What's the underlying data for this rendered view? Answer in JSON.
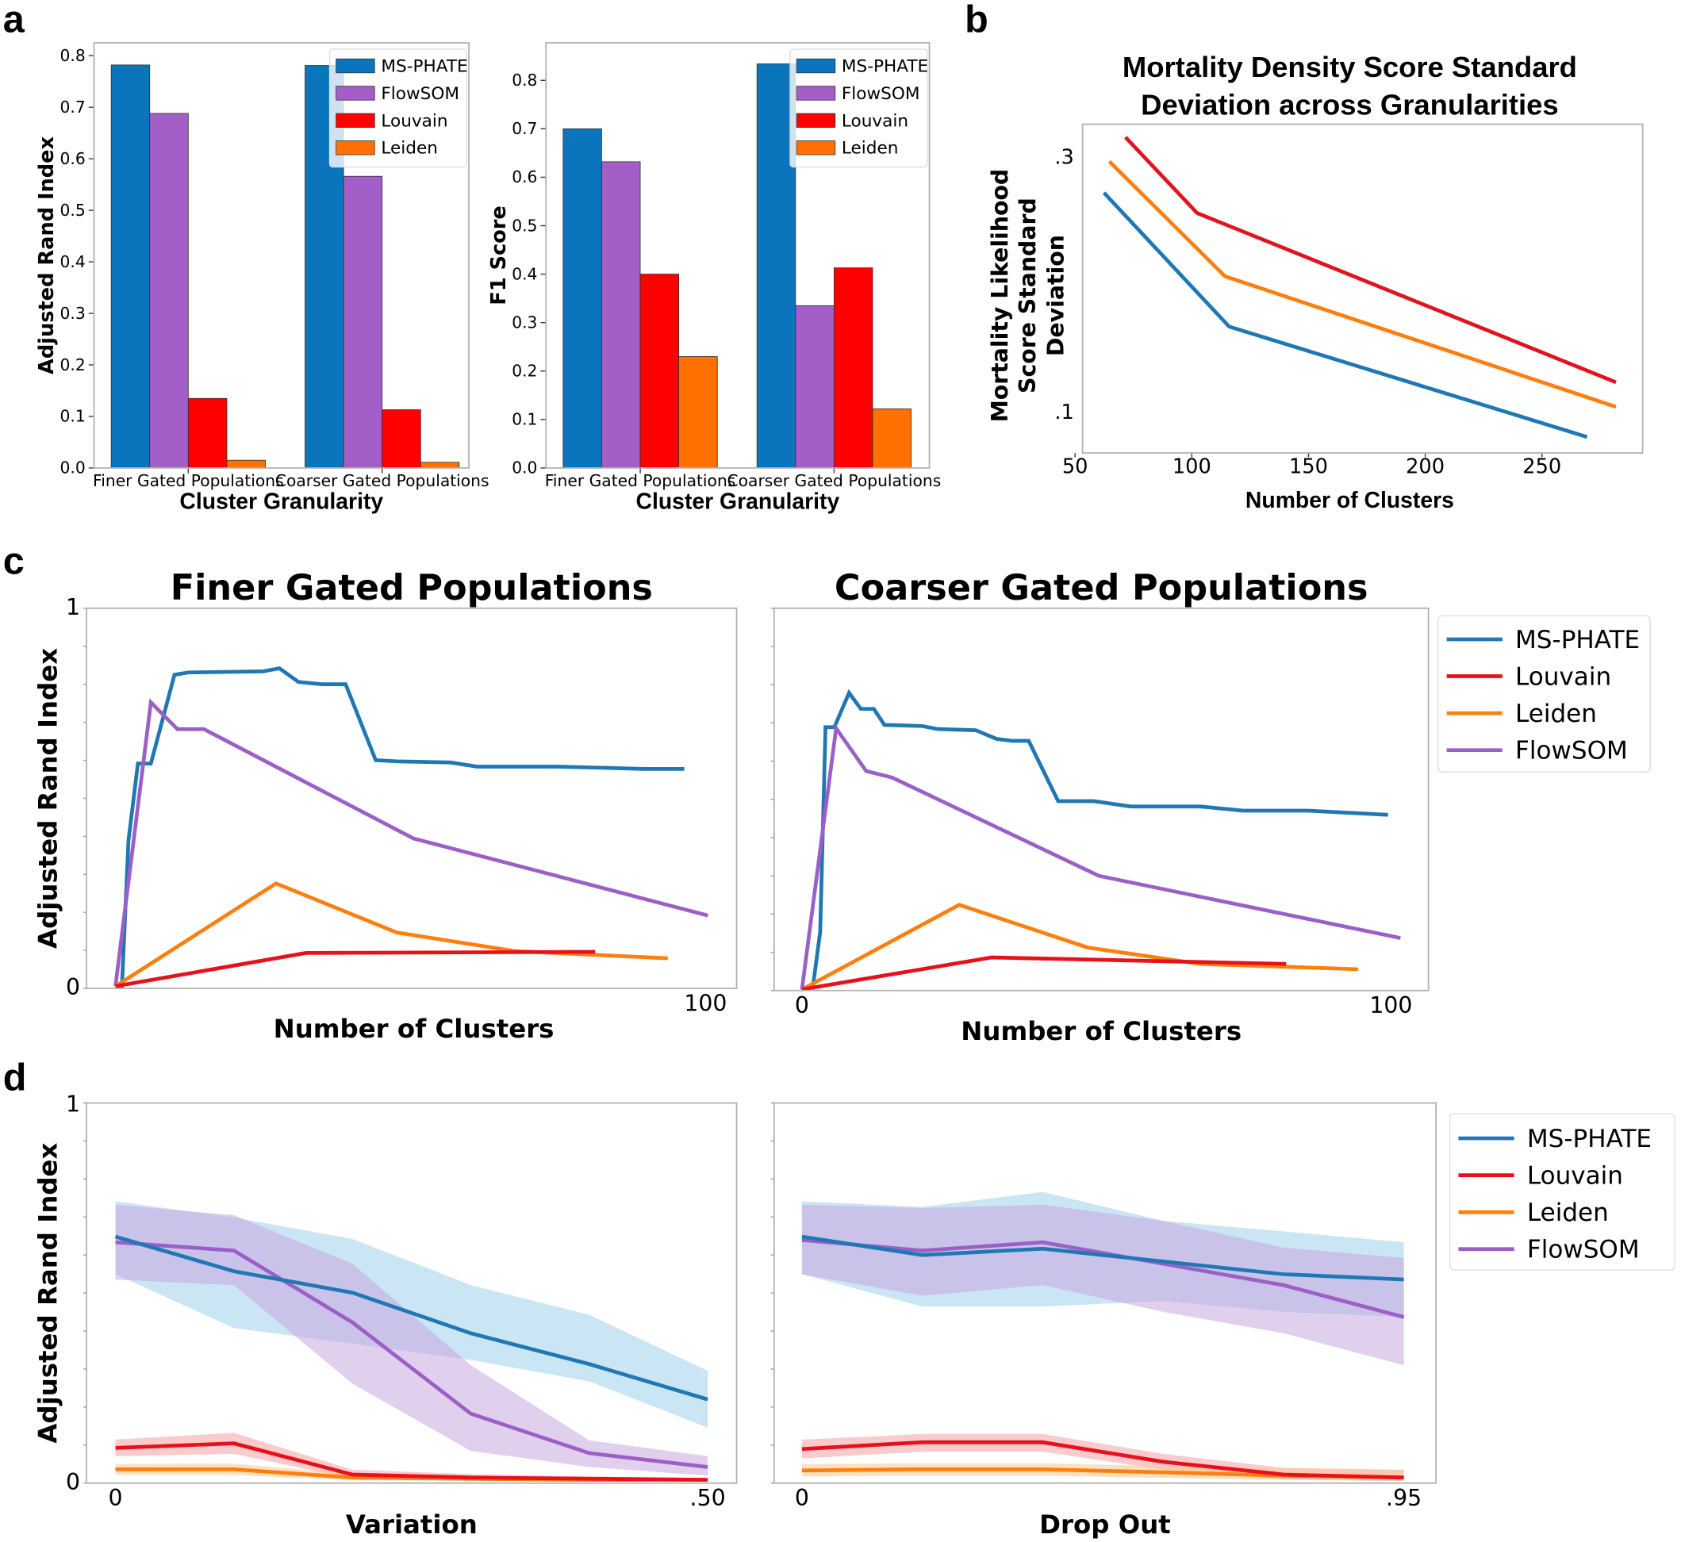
{
  "panel_labels": [
    "a",
    "b",
    "c",
    "d"
  ],
  "chart_data": [
    {
      "type": "bar",
      "categories": [
        "Finer Gated Populations",
        "Coarser Gated Populations"
      ],
      "series": [
        {
          "name": "MS-PHATE",
          "color": "#0a75bc",
          "values": [
            0.782,
            0.781
          ]
        },
        {
          "name": "FlowSOM",
          "color": "#a35ec8",
          "values": [
            0.688,
            0.566
          ]
        },
        {
          "name": "Louvain",
          "color": "#ff0000",
          "values": [
            0.135,
            0.113
          ]
        },
        {
          "name": "Leiden",
          "color": "#ff7000",
          "values": [
            0.015,
            0.011
          ]
        }
      ],
      "xlabel": "Cluster Granularity",
      "ylabel": "Adjusted Rand Index",
      "yticks": [
        "0.0",
        "0.1",
        "0.2",
        "0.3",
        "0.4",
        "0.5",
        "0.6",
        "0.7",
        "0.8"
      ],
      "ylim": [
        0,
        0.82
      ],
      "legend": "top-right"
    },
    {
      "type": "bar",
      "categories": [
        "Finer Gated Populations",
        "Coarser Gated Populations"
      ],
      "series": [
        {
          "name": "MS-PHATE",
          "color": "#0a75bc",
          "values": [
            0.7,
            0.834
          ]
        },
        {
          "name": "FlowSOM",
          "color": "#a35ec8",
          "values": [
            0.632,
            0.335
          ]
        },
        {
          "name": "Louvain",
          "color": "#ff0000",
          "values": [
            0.4,
            0.413
          ]
        },
        {
          "name": "Leiden",
          "color": "#ff7000",
          "values": [
            0.23,
            0.122
          ]
        }
      ],
      "xlabel": "Cluster Granularity",
      "ylabel": "F1 Score",
      "yticks": [
        "0.0",
        "0.1",
        "0.2",
        "0.3",
        "0.4",
        "0.5",
        "0.6",
        "0.7",
        "0.8"
      ],
      "ylim": [
        0,
        0.88
      ],
      "legend": "top-right"
    },
    {
      "type": "line",
      "title": "Mortality Density Score Standard Deviation across Granularities",
      "title_lines": [
        "Mortality Density Score Standard",
        "Deviation across Granularities"
      ],
      "xlabel": "Number of Clusters",
      "ylabel_lines": [
        "Mortality Likelihood",
        "Score Standard",
        "Deviation"
      ],
      "xticks": [
        50,
        100,
        150,
        200,
        250
      ],
      "yticks": [
        {
          "v": 0.3,
          "label": ".3"
        },
        {
          "v": 0.1,
          "label": ".1"
        }
      ],
      "series": [
        {
          "color": "#e0141e",
          "points": [
            [
              71.6,
              0.315
            ],
            [
              102.3,
              0.2555
            ],
            [
              281.7,
              0.1227
            ]
          ]
        },
        {
          "color": "#ff7f0e",
          "points": [
            [
              64.7,
              0.296
            ],
            [
              114.2,
              0.2059
            ],
            [
              281.7,
              0.1034
            ]
          ]
        },
        {
          "color": "#1f77b4",
          "points": [
            [
              62.4,
              0.2714
            ],
            [
              116,
              0.1664
            ],
            [
              269.3,
              0.0798
            ]
          ]
        }
      ]
    },
    {
      "type": "line",
      "title": "Finer Gated Populations",
      "xlabel": "Number of Clusters",
      "ylabel": "Adjusted Rand Index",
      "xticks": [
        {
          "v": 100,
          "label": "100"
        }
      ],
      "yticks": [
        {
          "v": 0,
          "label": "0"
        },
        {
          "v": 1,
          "label": "1"
        }
      ],
      "series": [
        {
          "name": "MS-PHATE",
          "color": "#1f77b4",
          "points": [
            [
              0,
              0
            ],
            [
              1.1,
              0
            ],
            [
              2.2,
              0.385
            ],
            [
              3.8,
              0.589
            ],
            [
              6,
              0.589
            ],
            [
              10,
              0.824
            ],
            [
              12.3,
              0.83
            ],
            [
              25,
              0.833
            ],
            [
              27.8,
              0.841
            ],
            [
              31,
              0.805
            ],
            [
              35,
              0.799
            ],
            [
              39,
              0.799
            ],
            [
              44.1,
              0.598
            ],
            [
              47.7,
              0.595
            ],
            [
              56.8,
              0.592
            ],
            [
              61.3,
              0.581
            ],
            [
              75,
              0.581
            ],
            [
              89.5,
              0.575
            ],
            [
              96.4,
              0.575
            ]
          ]
        },
        {
          "name": "FlowSOM",
          "color": "#9c5fc7",
          "points": [
            [
              0,
              0
            ],
            [
              6,
              0.751
            ],
            [
              10.5,
              0.68
            ],
            [
              15,
              0.68
            ],
            [
              50.5,
              0.391
            ],
            [
              100.4,
              0.187
            ]
          ]
        },
        {
          "name": "Leiden",
          "color": "#ff7f0e",
          "points": [
            [
              0,
              0
            ],
            [
              27.2,
              0.272
            ],
            [
              47.7,
              0.142
            ],
            [
              67.7,
              0.093
            ],
            [
              93.6,
              0.074
            ]
          ]
        },
        {
          "name": "Louvain",
          "color": "#e8101a",
          "points": [
            [
              0,
              0
            ],
            [
              32.3,
              0.088
            ],
            [
              81.3,
              0.091
            ]
          ]
        }
      ]
    },
    {
      "type": "line",
      "title": "Coarser Gated Populations",
      "xlabel": "Number of Clusters",
      "xticks": [
        {
          "v": 0,
          "label": "0"
        },
        {
          "v": 100,
          "label": "100"
        }
      ],
      "series": [
        {
          "name": "MS-PHATE",
          "color": "#1f77b4",
          "points": [
            [
              1.8,
              0
            ],
            [
              3.1,
              0.152
            ],
            [
              4,
              0.688
            ],
            [
              5.5,
              0.688
            ],
            [
              8,
              0.778
            ],
            [
              10,
              0.736
            ],
            [
              12.2,
              0.736
            ],
            [
              14,
              0.694
            ],
            [
              20.4,
              0.691
            ],
            [
              23.1,
              0.683
            ],
            [
              29.5,
              0.68
            ],
            [
              33.1,
              0.657
            ],
            [
              35.8,
              0.652
            ],
            [
              38.5,
              0.652
            ],
            [
              43.5,
              0.494
            ],
            [
              49.5,
              0.494
            ],
            [
              55.8,
              0.48
            ],
            [
              67.6,
              0.48
            ],
            [
              74.9,
              0.469
            ],
            [
              85.8,
              0.469
            ],
            [
              99.5,
              0.458
            ]
          ]
        },
        {
          "name": "FlowSOM",
          "color": "#9c5fc7",
          "points": [
            [
              0,
              0
            ],
            [
              5.8,
              0.685
            ],
            [
              10.9,
              0.573
            ],
            [
              15.3,
              0.556
            ],
            [
              50.4,
              0.298
            ],
            [
              101.6,
              0.135
            ]
          ]
        },
        {
          "name": "Leiden",
          "color": "#ff7f0e",
          "points": [
            [
              0,
              0
            ],
            [
              26.7,
              0.222
            ],
            [
              48.5,
              0.11
            ],
            [
              67.6,
              0.067
            ],
            [
              94.4,
              0.053
            ]
          ]
        },
        {
          "name": "Louvain",
          "color": "#e8101a",
          "points": [
            [
              0,
              0
            ],
            [
              32.2,
              0.084
            ],
            [
              82.2,
              0.067
            ]
          ]
        }
      ],
      "legend": {
        "placement": "right",
        "entries": [
          {
            "name": "MS-PHATE",
            "color": "#1f77b4"
          },
          {
            "name": "Louvain",
            "color": "#e8101a"
          },
          {
            "name": "Leiden",
            "color": "#ff7f0e"
          },
          {
            "name": "FlowSOM",
            "color": "#9c5fc7"
          }
        ]
      }
    },
    {
      "type": "area",
      "xlabel": "Variation",
      "ylabel": "Adjusted Rand Index",
      "xticks": [
        {
          "v": 0,
          "label": "0"
        },
        {
          "v": 0.5,
          "label": ".50"
        }
      ],
      "yticks": [
        {
          "v": 0,
          "label": "0"
        },
        {
          "v": 1,
          "label": "1"
        }
      ],
      "x": [
        0,
        0.1,
        0.2,
        0.3,
        0.4,
        0.5
      ],
      "series": [
        {
          "name": "MS-PHATE",
          "color": "#1f77b4",
          "band_color": "#9fd0ea",
          "values": [
            0.65,
            0.558,
            0.501,
            0.393,
            0.311,
            0.217
          ],
          "upper": [
            0.744,
            0.701,
            0.644,
            0.521,
            0.442,
            0.293
          ],
          "lower": [
            0.55,
            0.407,
            0.365,
            0.322,
            0.265,
            0.142
          ]
        },
        {
          "name": "FlowSOM",
          "color": "#9c5fc7",
          "band_color": "#c9a8e0",
          "values": [
            0.635,
            0.613,
            0.422,
            0.179,
            0.074,
            0.037
          ],
          "upper": [
            0.735,
            0.707,
            0.578,
            0.308,
            0.108,
            0.066
          ],
          "lower": [
            0.536,
            0.521,
            0.259,
            0.08,
            0.037,
            0.014
          ]
        },
        {
          "name": "Louvain",
          "color": "#e8101a",
          "band_color": "#f4a0a4",
          "values": [
            0.088,
            0.1,
            0.017,
            0.009,
            0.006,
            0.003
          ],
          "upper": [
            0.11,
            0.128,
            0.03,
            0.018,
            0.012,
            0.008
          ],
          "lower": [
            0.066,
            0.072,
            0.006,
            0.002,
            0.001,
            0.0
          ]
        },
        {
          "name": "Leiden",
          "color": "#ff7f0e",
          "band_color": "#ffc890",
          "values": [
            0.031,
            0.031,
            0.009,
            0.006,
            0.003,
            0.003
          ],
          "upper": [
            0.045,
            0.046,
            0.018,
            0.012,
            0.008,
            0.007
          ],
          "lower": [
            0.017,
            0.016,
            0.002,
            0.001,
            0.0,
            0.0
          ]
        }
      ]
    },
    {
      "type": "area",
      "xlabel": "Drop Out",
      "xticks": [
        {
          "v": 0,
          "label": "0"
        },
        {
          "v": 0.95,
          "label": ".95"
        }
      ],
      "x": [
        0,
        0.19,
        0.38,
        0.57,
        0.76,
        0.95
      ],
      "series": [
        {
          "name": "MS-PHATE",
          "color": "#1f77b4",
          "band_color": "#9fd0ea",
          "values": [
            0.65,
            0.601,
            0.618,
            0.584,
            0.55,
            0.536
          ],
          "upper": [
            0.744,
            0.729,
            0.769,
            0.692,
            0.664,
            0.635
          ],
          "lower": [
            0.55,
            0.464,
            0.464,
            0.479,
            0.45,
            0.436
          ]
        },
        {
          "name": "FlowSOM",
          "color": "#9c5fc7",
          "band_color": "#c9a8e0",
          "values": [
            0.641,
            0.613,
            0.635,
            0.578,
            0.521,
            0.436
          ],
          "upper": [
            0.735,
            0.726,
            0.735,
            0.692,
            0.621,
            0.593
          ],
          "lower": [
            0.55,
            0.493,
            0.521,
            0.45,
            0.393,
            0.308
          ]
        },
        {
          "name": "Louvain",
          "color": "#e8101a",
          "band_color": "#f4a0a4",
          "values": [
            0.085,
            0.103,
            0.103,
            0.051,
            0.017,
            0.009
          ],
          "upper": [
            0.11,
            0.125,
            0.125,
            0.072,
            0.035,
            0.03
          ],
          "lower": [
            0.06,
            0.078,
            0.078,
            0.03,
            0.005,
            0.0
          ]
        },
        {
          "name": "Leiden",
          "color": "#ff7f0e",
          "band_color": "#ffc890",
          "values": [
            0.028,
            0.031,
            0.031,
            0.023,
            0.014,
            0.009
          ],
          "upper": [
            0.045,
            0.047,
            0.047,
            0.04,
            0.032,
            0.028
          ],
          "lower": [
            0.012,
            0.014,
            0.014,
            0.008,
            0.003,
            0.0
          ]
        }
      ],
      "legend": {
        "placement": "right",
        "entries": [
          {
            "name": "MS-PHATE",
            "color": "#1f77b4"
          },
          {
            "name": "Louvain",
            "color": "#e8101a"
          },
          {
            "name": "Leiden",
            "color": "#ff7f0e"
          },
          {
            "name": "FlowSOM",
            "color": "#9c5fc7"
          }
        ]
      }
    }
  ]
}
